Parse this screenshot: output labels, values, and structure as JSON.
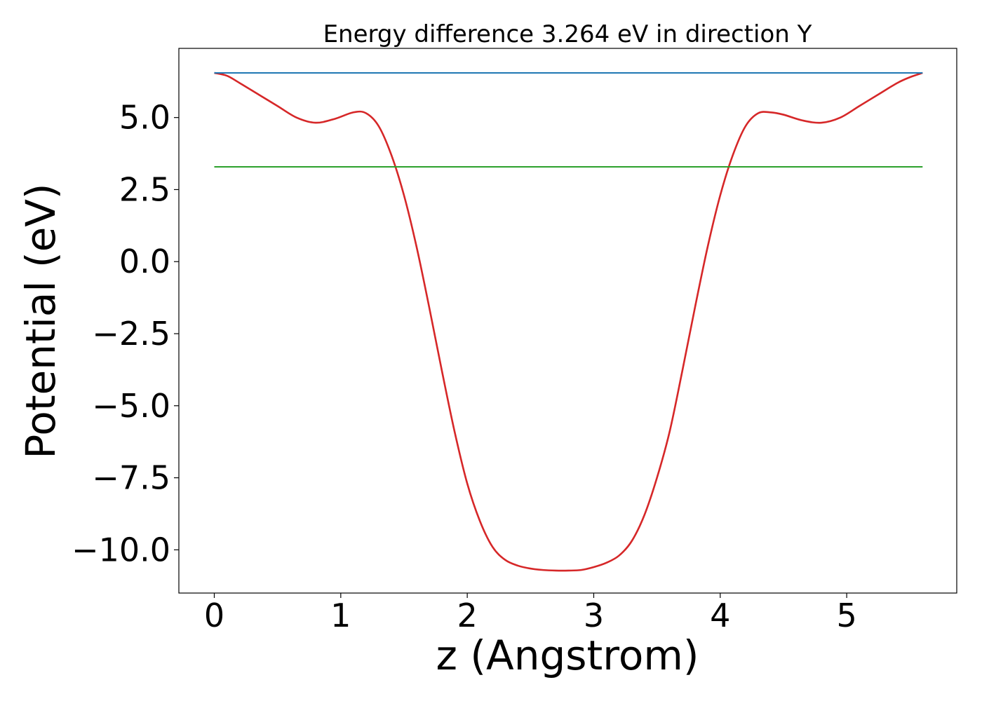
{
  "chart_data": {
    "type": "line",
    "title": "Energy difference 3.264 eV in direction Y",
    "xlabel": "z (Angstrom)",
    "ylabel": "Potential (eV)",
    "xlim": [
      -0.28,
      5.87
    ],
    "ylim": [
      -11.5,
      7.4
    ],
    "x_ticks": [
      0,
      1,
      2,
      3,
      4,
      5
    ],
    "x_tick_labels": [
      "0",
      "1",
      "2",
      "3",
      "4",
      "5"
    ],
    "y_ticks": [
      -10.0,
      -7.5,
      -5.0,
      -2.5,
      0.0,
      2.5,
      5.0
    ],
    "y_tick_labels": [
      "−10.0",
      "−7.5",
      "−5.0",
      "−2.5",
      "0.0",
      "2.5",
      "5.0"
    ],
    "grid": false,
    "series": [
      {
        "color": "#d62728",
        "kind": "curve",
        "x": [
          0.0,
          0.1,
          0.2,
          0.35,
          0.5,
          0.65,
          0.8,
          0.95,
          1.1,
          1.2,
          1.3,
          1.4,
          1.5,
          1.6,
          1.7,
          1.8,
          1.9,
          2.0,
          2.1,
          2.2,
          2.3,
          2.4,
          2.5,
          2.6,
          2.7,
          2.8,
          2.9,
          3.0,
          3.1,
          3.2,
          3.3,
          3.4,
          3.5,
          3.6,
          3.7,
          3.8,
          3.9,
          4.0,
          4.1,
          4.2,
          4.3,
          4.4,
          4.5,
          4.65,
          4.8,
          4.95,
          5.1,
          5.25,
          5.4,
          5.5,
          5.6
        ],
        "y": [
          6.55,
          6.45,
          6.2,
          5.8,
          5.4,
          5.0,
          4.82,
          4.95,
          5.18,
          5.15,
          4.7,
          3.7,
          2.3,
          0.5,
          -1.6,
          -3.8,
          -5.9,
          -7.7,
          -9.0,
          -9.9,
          -10.35,
          -10.55,
          -10.65,
          -10.7,
          -10.72,
          -10.72,
          -10.7,
          -10.6,
          -10.45,
          -10.2,
          -9.7,
          -8.8,
          -7.5,
          -5.9,
          -3.8,
          -1.6,
          0.5,
          2.3,
          3.7,
          4.7,
          5.15,
          5.18,
          5.1,
          4.9,
          4.82,
          5.0,
          5.4,
          5.8,
          6.2,
          6.4,
          6.55
        ]
      },
      {
        "color": "#1f77b4",
        "kind": "hline",
        "x": [
          0.0,
          5.6
        ],
        "y": [
          6.55,
          6.55
        ]
      },
      {
        "color": "#2ca02c",
        "kind": "hline",
        "x": [
          0.0,
          5.6
        ],
        "y": [
          3.29,
          3.29
        ]
      }
    ]
  }
}
